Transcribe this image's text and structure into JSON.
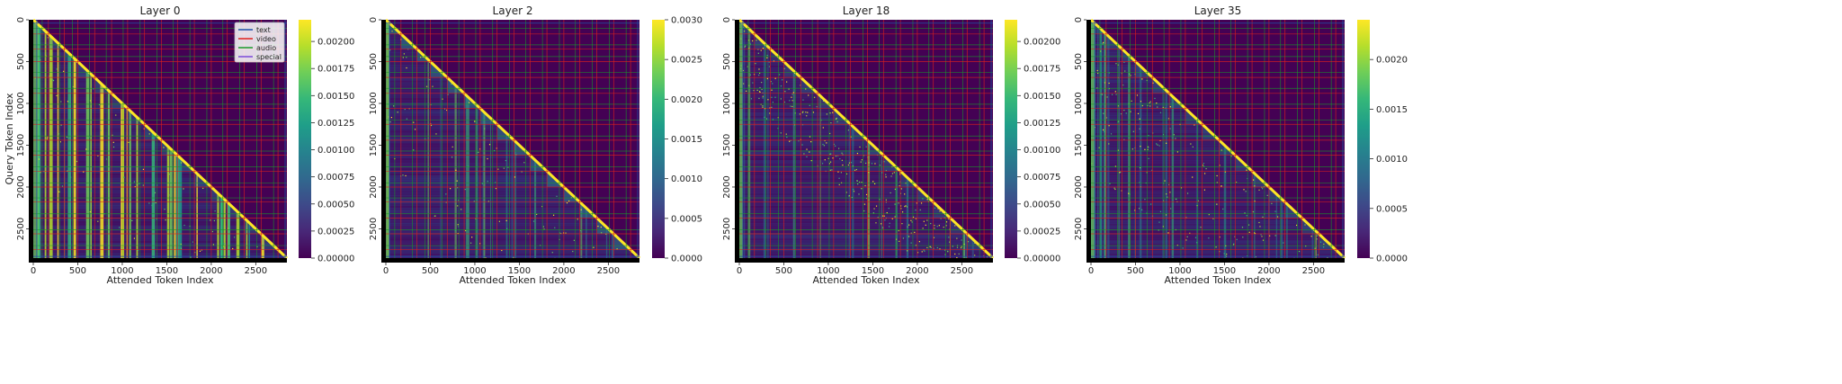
{
  "figure": {
    "ylabel": "Query Token Index"
  },
  "chart_data": [
    {
      "type": "heatmap",
      "title": "Layer 0",
      "xlabel": "Attended Token Index",
      "ylabel": "Query Token Index",
      "xlim": [
        0,
        2850
      ],
      "ylim": [
        2850,
        0
      ],
      "x_ticks": [
        0,
        500,
        1000,
        1500,
        2000,
        2500
      ],
      "y_ticks": [
        0,
        500,
        1000,
        1500,
        2000,
        2500
      ],
      "colorbar": {
        "min": 0,
        "max": 0.0022,
        "ticks": [
          "0.00000",
          "0.00025",
          "0.00050",
          "0.00075",
          "0.00100",
          "0.00125",
          "0.00150",
          "0.00175",
          "0.00200"
        ]
      },
      "legend": {
        "position": "top-right",
        "entries": [
          {
            "label": "text",
            "color": "#1f4fa8"
          },
          {
            "label": "video",
            "color": "#e0201c"
          },
          {
            "label": "audio",
            "color": "#1a9a2a"
          },
          {
            "label": "special",
            "color": "#7b4bd8"
          }
        ]
      },
      "pattern": "strong vertical stripes (attention sinks)"
    },
    {
      "type": "heatmap",
      "title": "Layer 2",
      "xlabel": "Attended Token Index",
      "ylabel": "",
      "xlim": [
        0,
        2850
      ],
      "ylim": [
        2850,
        0
      ],
      "x_ticks": [
        0,
        500,
        1000,
        1500,
        2000,
        2500
      ],
      "y_ticks": [
        0,
        500,
        1000,
        1500,
        2000,
        2500
      ],
      "colorbar": {
        "min": 0,
        "max": 0.003,
        "ticks": [
          "0.0000",
          "0.0005",
          "0.0010",
          "0.0015",
          "0.0020",
          "0.0025",
          "0.0030"
        ]
      },
      "pattern": "block-diagonal chunks"
    },
    {
      "type": "heatmap",
      "title": "Layer 18",
      "xlabel": "Attended Token Index",
      "ylabel": "",
      "xlim": [
        0,
        2850
      ],
      "ylim": [
        2850,
        0
      ],
      "x_ticks": [
        0,
        500,
        1000,
        1500,
        2000,
        2500
      ],
      "y_ticks": [
        0,
        500,
        1000,
        1500,
        2000,
        2500
      ],
      "colorbar": {
        "min": 0,
        "max": 0.0022,
        "ticks": [
          "0.00000",
          "0.00025",
          "0.00050",
          "0.00075",
          "0.00100",
          "0.00125",
          "0.00150",
          "0.00175",
          "0.00200"
        ]
      },
      "pattern": "sparse diagonal with scattered dots"
    },
    {
      "type": "heatmap",
      "title": "Layer 35",
      "xlabel": "Attended Token Index",
      "ylabel": "",
      "xlim": [
        0,
        2850
      ],
      "ylim": [
        2850,
        0
      ],
      "x_ticks": [
        0,
        500,
        1000,
        1500,
        2000,
        2500
      ],
      "y_ticks": [
        0,
        500,
        1000,
        1500,
        2000,
        2500
      ],
      "colorbar": {
        "min": 0,
        "max": 0.0024,
        "ticks": [
          "0.0000",
          "0.0005",
          "0.0010",
          "0.0015",
          "0.0020"
        ]
      },
      "pattern": "dense early columns, sparse diagonal"
    }
  ],
  "modality_grid": {
    "red_positions": [
      170,
      350,
      500,
      690,
      880,
      1060,
      1250,
      1440,
      1620,
      1810,
      2000,
      2180,
      2370,
      2560,
      2750
    ],
    "green_positions": [
      100,
      300,
      440,
      630,
      820,
      1010,
      1200,
      1390,
      1570,
      1760,
      1950,
      2130,
      2320,
      2510,
      2700
    ],
    "blue_positions": [
      40,
      2830
    ],
    "colors": {
      "video": "#e0201c",
      "audio": "#1a9a2a",
      "text": "#1f4fa8",
      "special": "#7b4bd8"
    }
  },
  "colors": {
    "background": "#440154",
    "diagonal": "#fde725"
  }
}
